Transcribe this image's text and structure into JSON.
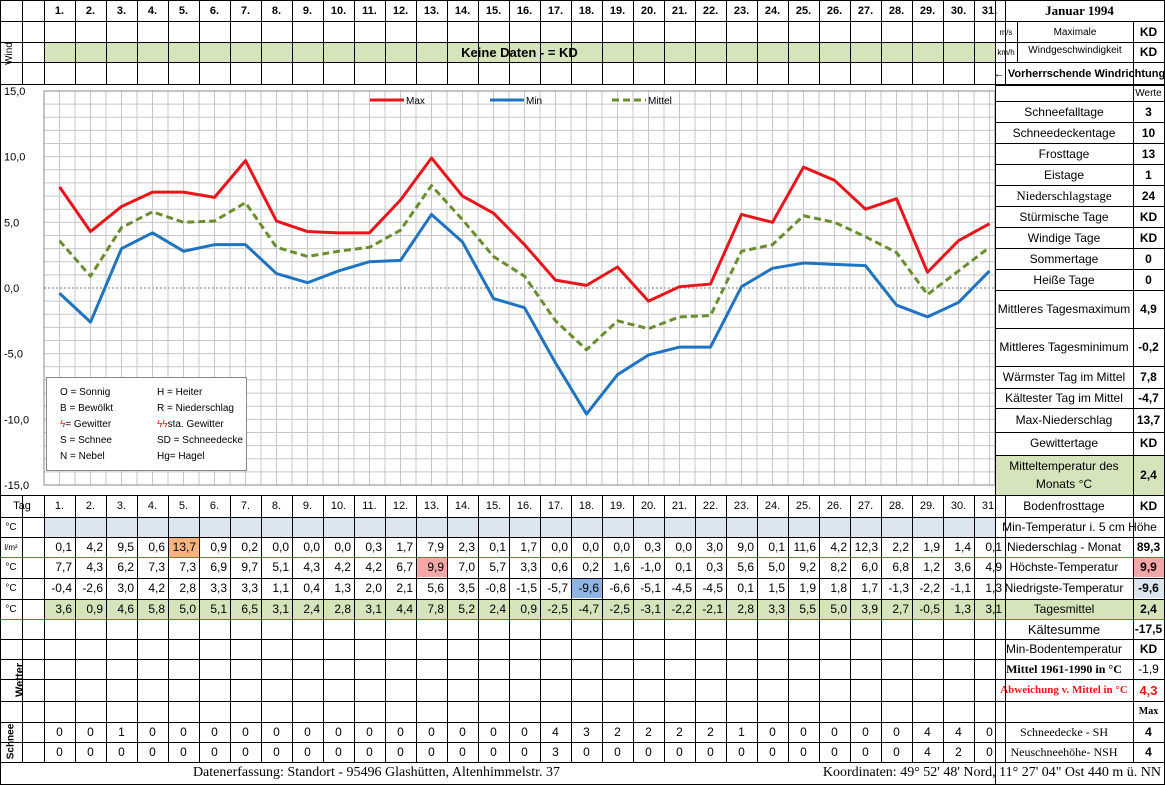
{
  "title": "Januar 1994",
  "days": [
    "1.",
    "2.",
    "3.",
    "4.",
    "5.",
    "6.",
    "7.",
    "8.",
    "9.",
    "10.",
    "11.",
    "12.",
    "13.",
    "14.",
    "15.",
    "16.",
    "17.",
    "18.",
    "19.",
    "20.",
    "21.",
    "22.",
    "23.",
    "24.",
    "25.",
    "26.",
    "27.",
    "28.",
    "29.",
    "30.",
    "31."
  ],
  "wind": {
    "label": "Wind",
    "unit_ms": "m/s",
    "unit_kmh": "km/h",
    "no_data": "Keine Daten -  = KD",
    "max_label": "Maximale Windgeschwindigkeit",
    "max_ms": "KD",
    "max_kmh": "KD",
    "direction_label": "← Vorherrschende Windrichtung"
  },
  "y_ticks": [
    "15,0",
    "10,0",
    "5,0",
    "0,0",
    "-5,0",
    "-10,0",
    "-15,0"
  ],
  "legend_series": [
    "Max",
    "Min",
    "Mittel"
  ],
  "weather_legend": [
    [
      "O = Sonnig",
      "H = Heiter"
    ],
    [
      "B = Bewölkt",
      "R = Niederschlag"
    ],
    [
      "= Gewitter",
      "sta. Gewitter"
    ],
    [
      "S = Schnee",
      "SD = Schneedecke"
    ],
    [
      "N = Nebel",
      "Hg= Hagel"
    ]
  ],
  "weather_legend_symbols": {
    "gewitter": "ϟ",
    "sta_gewitter": "ϟϟ"
  },
  "stats_header": "Werte",
  "stats": [
    {
      "label": "Schneefalltage",
      "value": "3"
    },
    {
      "label": "Schneedeckentage",
      "value": "10"
    },
    {
      "label": "Frosttage",
      "value": "13"
    },
    {
      "label": "Eistage",
      "value": "1"
    },
    {
      "label": "Niederschlagstage",
      "value": "24"
    },
    {
      "label": "Stürmische Tage",
      "value": "KD"
    },
    {
      "label": "Windige Tage",
      "value": "KD"
    },
    {
      "label": "Sommertage",
      "value": "0"
    },
    {
      "label": "Heiße Tage",
      "value": "0"
    },
    {
      "label": "Mittleres Tagesmaximum",
      "value": "4,9"
    },
    {
      "label": "Mittleres Tagesminimum",
      "value": "-0,2"
    },
    {
      "label": "Wärmster Tag im Mittel",
      "value": "7,8"
    },
    {
      "label": "Kältester Tag im Mittel",
      "value": "-4,7"
    },
    {
      "label": "Max-Niederschlag",
      "value": "13,7"
    },
    {
      "label": "Gewittertage",
      "value": "KD"
    },
    {
      "label": "Mitteltemperatur des Monats °C",
      "value": "2,4"
    },
    {
      "label": "Bodenfrosttage",
      "value": "KD"
    }
  ],
  "table": {
    "tag_label": "Tag",
    "unit_c": "°C",
    "unit_lm2": "l/m²",
    "min5_label": "Min-Temperatur i. 5 cm Höhe",
    "precip_label": "Niederschlag - Monat",
    "precip_total": "89,3",
    "precip": [
      "0,1",
      "4,2",
      "9,5",
      "0,6",
      "13,7",
      "0,9",
      "0,2",
      "0,0",
      "0,0",
      "0,0",
      "0,3",
      "1,7",
      "7,9",
      "2,3",
      "0,1",
      "1,7",
      "0,0",
      "0,0",
      "0,0",
      "0,3",
      "0,0",
      "3,0",
      "9,0",
      "0,1",
      "11,6",
      "4,2",
      "12,3",
      "2,2",
      "1,9",
      "1,4",
      "0,1"
    ],
    "max_label": "Höchste-Temperatur",
    "max_value": "9,9",
    "tmax": [
      "7,7",
      "4,3",
      "6,2",
      "7,3",
      "7,3",
      "6,9",
      "9,7",
      "5,1",
      "4,3",
      "4,2",
      "4,2",
      "6,7",
      "9,9",
      "7,0",
      "5,7",
      "3,3",
      "0,6",
      "0,2",
      "1,6",
      "-1,0",
      "0,1",
      "0,3",
      "5,6",
      "5,0",
      "9,2",
      "8,2",
      "6,0",
      "6,8",
      "1,2",
      "3,6",
      "4,9"
    ],
    "min_label": "Niedrigste-Temperatur",
    "min_value": "-9,6",
    "tmin": [
      "-0,4",
      "-2,6",
      "3,0",
      "4,2",
      "2,8",
      "3,3",
      "3,3",
      "1,1",
      "0,4",
      "1,3",
      "2,0",
      "2,1",
      "5,6",
      "3,5",
      "-0,8",
      "-1,5",
      "-5,7",
      "-9,6",
      "-6,6",
      "-5,1",
      "-4,5",
      "-4,5",
      "0,1",
      "1,5",
      "1,9",
      "1,8",
      "1,7",
      "-1,3",
      "-2,2",
      "-1,1",
      "1,3"
    ],
    "mean_label": "Tagesmittel",
    "mean_value": "2,4",
    "tmean": [
      "3,6",
      "0,9",
      "4,6",
      "5,8",
      "5,0",
      "5,1",
      "6,5",
      "3,1",
      "2,4",
      "2,8",
      "3,1",
      "4,4",
      "7,8",
      "5,2",
      "2,4",
      "0,9",
      "-2,5",
      "-4,7",
      "-2,5",
      "-3,1",
      "-2,2",
      "-2,1",
      "2,8",
      "3,3",
      "5,5",
      "5,0",
      "3,9",
      "2,7",
      "-0,5",
      "1,3",
      "3,1"
    ],
    "cold_sum_label": "Kältesumme",
    "cold_sum_value": "-17,5",
    "min_ground_label": "Min-Bodentemperatur",
    "min_ground_value": "KD",
    "mean_6190_label": "Mittel 1961-1990 in °C",
    "mean_6190_value": "-1,9",
    "deviation_label": "Abweichung v. Mittel in °C",
    "deviation_value": "4,3",
    "max_header": "Max",
    "wetter_label": "Wetter",
    "schnee_label": "Schnee",
    "sh_label": "Schneedecke -  SH",
    "sh_max": "4",
    "sh": [
      "0",
      "0",
      "1",
      "0",
      "0",
      "0",
      "0",
      "0",
      "0",
      "0",
      "0",
      "0",
      "0",
      "0",
      "0",
      "0",
      "4",
      "3",
      "2",
      "2",
      "2",
      "2",
      "1",
      "0",
      "0",
      "0",
      "0",
      "0",
      "4",
      "4",
      "0"
    ],
    "nsh_label": "Neuschneehöhe-  NSH",
    "nsh_max": "4",
    "nsh": [
      "0",
      "0",
      "0",
      "0",
      "0",
      "0",
      "0",
      "0",
      "0",
      "0",
      "0",
      "0",
      "0",
      "0",
      "0",
      "0",
      "3",
      "0",
      "0",
      "0",
      "0",
      "0",
      "0",
      "0",
      "0",
      "0",
      "0",
      "0",
      "4",
      "2",
      "0"
    ]
  },
  "footer_left": "Datenerfassung:  Standort -  95496  Glashütten, Altenhimmelstr. 37",
  "footer_right": "Koordinaten:  49° 52' 48' Nord,  11° 27' 04\" Ost   440 m ü. NN",
  "colors": {
    "max": "#e8161b",
    "min": "#1f74c2",
    "mittel": "#6a8e2e",
    "green_row": "#d6e4bc",
    "blue_row": "#dce6f1",
    "hl_orange": "#f7b27e",
    "hl_pink": "#f4a7a7",
    "hl_blue": "#8db4e2",
    "red_text": "#e8161b"
  },
  "chart_data": {
    "type": "line",
    "x": [
      1,
      2,
      3,
      4,
      5,
      6,
      7,
      8,
      9,
      10,
      11,
      12,
      13,
      14,
      15,
      16,
      17,
      18,
      19,
      20,
      21,
      22,
      23,
      24,
      25,
      26,
      27,
      28,
      29,
      30,
      31
    ],
    "series": [
      {
        "name": "Max",
        "values": [
          7.7,
          4.3,
          6.2,
          7.3,
          7.3,
          6.9,
          9.7,
          5.1,
          4.3,
          4.2,
          4.2,
          6.7,
          9.9,
          7.0,
          5.7,
          3.3,
          0.6,
          0.2,
          1.6,
          -1.0,
          0.1,
          0.3,
          5.6,
          5.0,
          9.2,
          8.2,
          6.0,
          6.8,
          1.2,
          3.6,
          4.9
        ]
      },
      {
        "name": "Min",
        "values": [
          -0.4,
          -2.6,
          3.0,
          4.2,
          2.8,
          3.3,
          3.3,
          1.1,
          0.4,
          1.3,
          2.0,
          2.1,
          5.6,
          3.5,
          -0.8,
          -1.5,
          -5.7,
          -9.6,
          -6.6,
          -5.1,
          -4.5,
          -4.5,
          0.1,
          1.5,
          1.9,
          1.8,
          1.7,
          -1.3,
          -2.2,
          -1.1,
          1.3
        ]
      },
      {
        "name": "Mittel",
        "values": [
          3.6,
          0.9,
          4.6,
          5.8,
          5.0,
          5.1,
          6.5,
          3.1,
          2.4,
          2.8,
          3.1,
          4.4,
          7.8,
          5.2,
          2.4,
          0.9,
          -2.5,
          -4.7,
          -2.5,
          -3.1,
          -2.2,
          -2.1,
          2.8,
          3.3,
          5.5,
          5.0,
          3.9,
          2.7,
          -0.5,
          1.3,
          3.1
        ]
      }
    ],
    "ylim": [
      -15,
      15
    ],
    "grid": true,
    "legend": "top"
  }
}
